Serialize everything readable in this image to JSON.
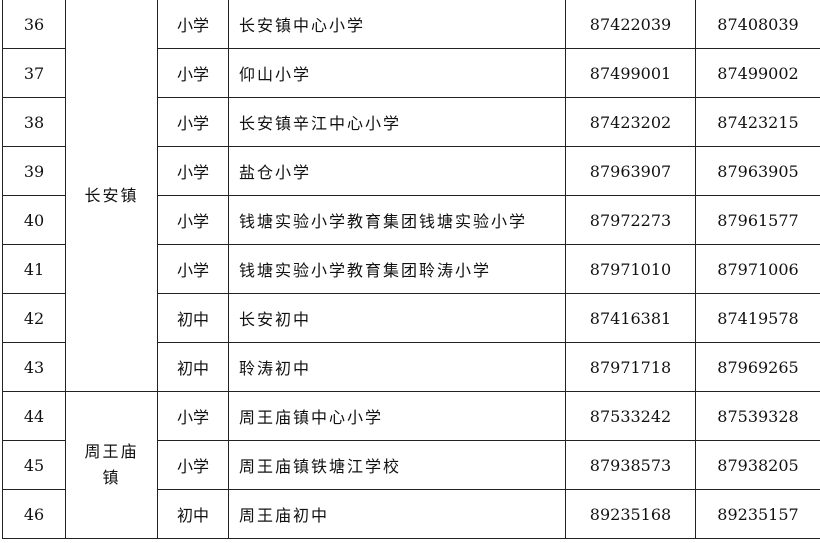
{
  "table": {
    "groups": [
      {
        "town": "长安镇",
        "rows": [
          [
            "36",
            "小学",
            "长安镇中心小学",
            "87422039",
            "87408039"
          ],
          [
            "37",
            "小学",
            "仰山小学",
            "87499001",
            "87499002"
          ],
          [
            "38",
            "小学",
            "长安镇辛江中心小学",
            "87423202",
            "87423215"
          ],
          [
            "39",
            "小学",
            "盐仓小学",
            "87963907",
            "87963905"
          ],
          [
            "40",
            "小学",
            "钱塘实验小学教育集团钱塘实验小学",
            "87972273",
            "87961577"
          ],
          [
            "41",
            "小学",
            "钱塘实验小学教育集团聆涛小学",
            "87971010",
            "87971006"
          ],
          [
            "42",
            "初中",
            "长安初中",
            "87416381",
            "87419578"
          ],
          [
            "43",
            "初中",
            "聆涛初中",
            "87971718",
            "87969265"
          ]
        ]
      },
      {
        "town": "周王庙镇",
        "rows": [
          [
            "44",
            "小学",
            "周王庙镇中心小学",
            "87533242",
            "87539328"
          ],
          [
            "45",
            "小学",
            "周王庙镇铁塘江学校",
            "87938573",
            "87938205"
          ],
          [
            "46",
            "初中",
            "周王庙初中",
            "89235168",
            "89235157"
          ]
        ]
      }
    ]
  }
}
